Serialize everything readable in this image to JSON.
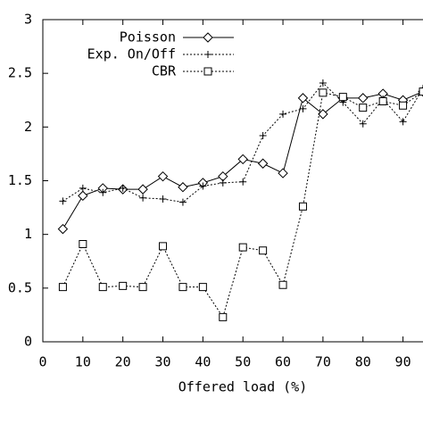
{
  "chart_data": {
    "type": "line",
    "xlabel": "Offered load (%)",
    "x": [
      5,
      10,
      15,
      20,
      25,
      30,
      35,
      40,
      45,
      50,
      55,
      60,
      65,
      70,
      75,
      80,
      85,
      90,
      95
    ],
    "series": [
      {
        "name": "Poisson",
        "color": "#000000",
        "dash": "solid",
        "marker": "diamond",
        "values": [
          1.05,
          1.36,
          1.43,
          1.42,
          1.42,
          1.54,
          1.44,
          1.48,
          1.54,
          1.7,
          1.66,
          1.57,
          2.27,
          2.12,
          2.27,
          2.27,
          2.31,
          2.25,
          2.33
        ]
      },
      {
        "name": "Exp. On/Off",
        "color": "#000000",
        "dash": "dotted",
        "marker": "plus",
        "values": [
          1.31,
          1.43,
          1.39,
          1.43,
          1.34,
          1.33,
          1.3,
          1.45,
          1.48,
          1.49,
          1.92,
          2.12,
          2.17,
          2.41,
          2.23,
          2.03,
          2.26,
          2.05,
          2.36
        ]
      },
      {
        "name": "CBR",
        "color": "#000000",
        "dash": "dotted",
        "marker": "square",
        "values": [
          0.51,
          0.91,
          0.51,
          0.52,
          0.51,
          0.89,
          0.51,
          0.51,
          0.23,
          0.88,
          0.85,
          0.53,
          1.26,
          2.32,
          2.28,
          2.18,
          2.24,
          2.2,
          2.33
        ]
      }
    ],
    "xlim": [
      0,
      95
    ],
    "xticks": [
      0,
      10,
      20,
      30,
      40,
      50,
      60,
      70,
      80,
      90
    ],
    "ylim": [
      0,
      3
    ],
    "yticks": [
      0,
      0.5,
      1,
      1.5,
      2,
      2.5,
      3
    ],
    "legend": "top-left",
    "grid": false
  }
}
